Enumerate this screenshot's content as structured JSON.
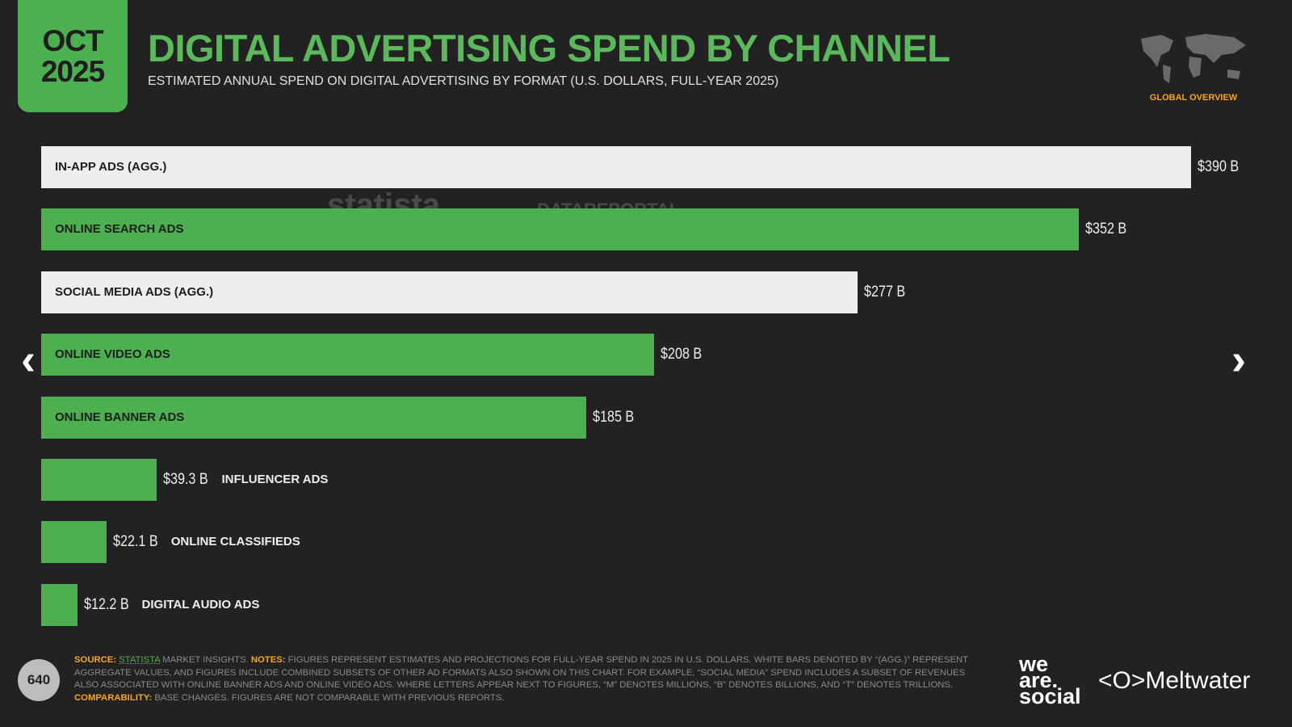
{
  "header": {
    "date_month": "OCT",
    "date_year": "2025",
    "title": "DIGITAL ADVERTISING SPEND BY CHANNEL",
    "subtitle": "ESTIMATED ANNUAL SPEND ON DIGITAL ADVERTISING BY FORMAT (U.S. DOLLARS, FULL-YEAR 2025)",
    "section": "GLOBAL OVERVIEW"
  },
  "watermarks": {
    "statista": "statista",
    "datareportal": "DATAREPORTAL"
  },
  "colors": {
    "background": "#222222",
    "green": "#4caf50",
    "white_bar": "#eeeeee",
    "accent": "#f5a623"
  },
  "chart_data": {
    "type": "bar",
    "orientation": "horizontal",
    "categories": [
      "IN-APP ADS (AGG.)",
      "ONLINE SEARCH ADS",
      "SOCIAL MEDIA ADS (AGG.)",
      "ONLINE VIDEO ADS",
      "ONLINE BANNER ADS",
      "INFLUENCER ADS",
      "ONLINE CLASSIFIEDS",
      "DIGITAL AUDIO ADS"
    ],
    "values": [
      390,
      352,
      277,
      208,
      185,
      39.3,
      22.1,
      12.2
    ],
    "value_labels": [
      "$390 B",
      "$352 B",
      "$277 B",
      "$208 B",
      "$185 B",
      "$39.3 B",
      "$22.1 B",
      "$12.2 B"
    ],
    "bar_colors": [
      "white",
      "green",
      "white",
      "green",
      "green",
      "green",
      "green",
      "green"
    ],
    "unit": "billion USD",
    "xlim": [
      0,
      390
    ],
    "grid": false,
    "legend": "none"
  },
  "nav": {
    "prev": "‹",
    "next": "›"
  },
  "footer": {
    "page_number": "640",
    "source_label": "SOURCE:",
    "source_link": "STATISTA",
    "source_text": " MARKET INSIGHTS. ",
    "notes_label": "NOTES:",
    "notes_text": " FIGURES REPRESENT ESTIMATES AND PROJECTIONS FOR FULL-YEAR SPEND IN 2025 IN U.S. DOLLARS. WHITE BARS DENOTED BY “(AGG.)” REPRESENT AGGREGATE VALUES, AND FIGURES INCLUDE COMBINED SUBSETS OF OTHER AD FORMATS ALSO SHOWN ON THIS CHART. FOR EXAMPLE, “SOCIAL MEDIA” SPEND INCLUDES A SUBSET OF REVENUES ALSO ASSOCIATED WITH ONLINE BANNER ADS AND ONLINE VIDEO ADS. WHERE LETTERS APPEAR NEXT TO FIGURES, “M” DENOTES MILLIONS, “B” DENOTES BILLIONS, AND “T” DENOTES TRILLIONS. ",
    "comparability_label": "COMPARABILITY:",
    "comparability_text": " BASE CHANGES. FIGURES ARE NOT COMPARABLE WITH PREVIOUS REPORTS.",
    "logo_was": "we are. social",
    "logo_meltwater": "Meltwater"
  }
}
